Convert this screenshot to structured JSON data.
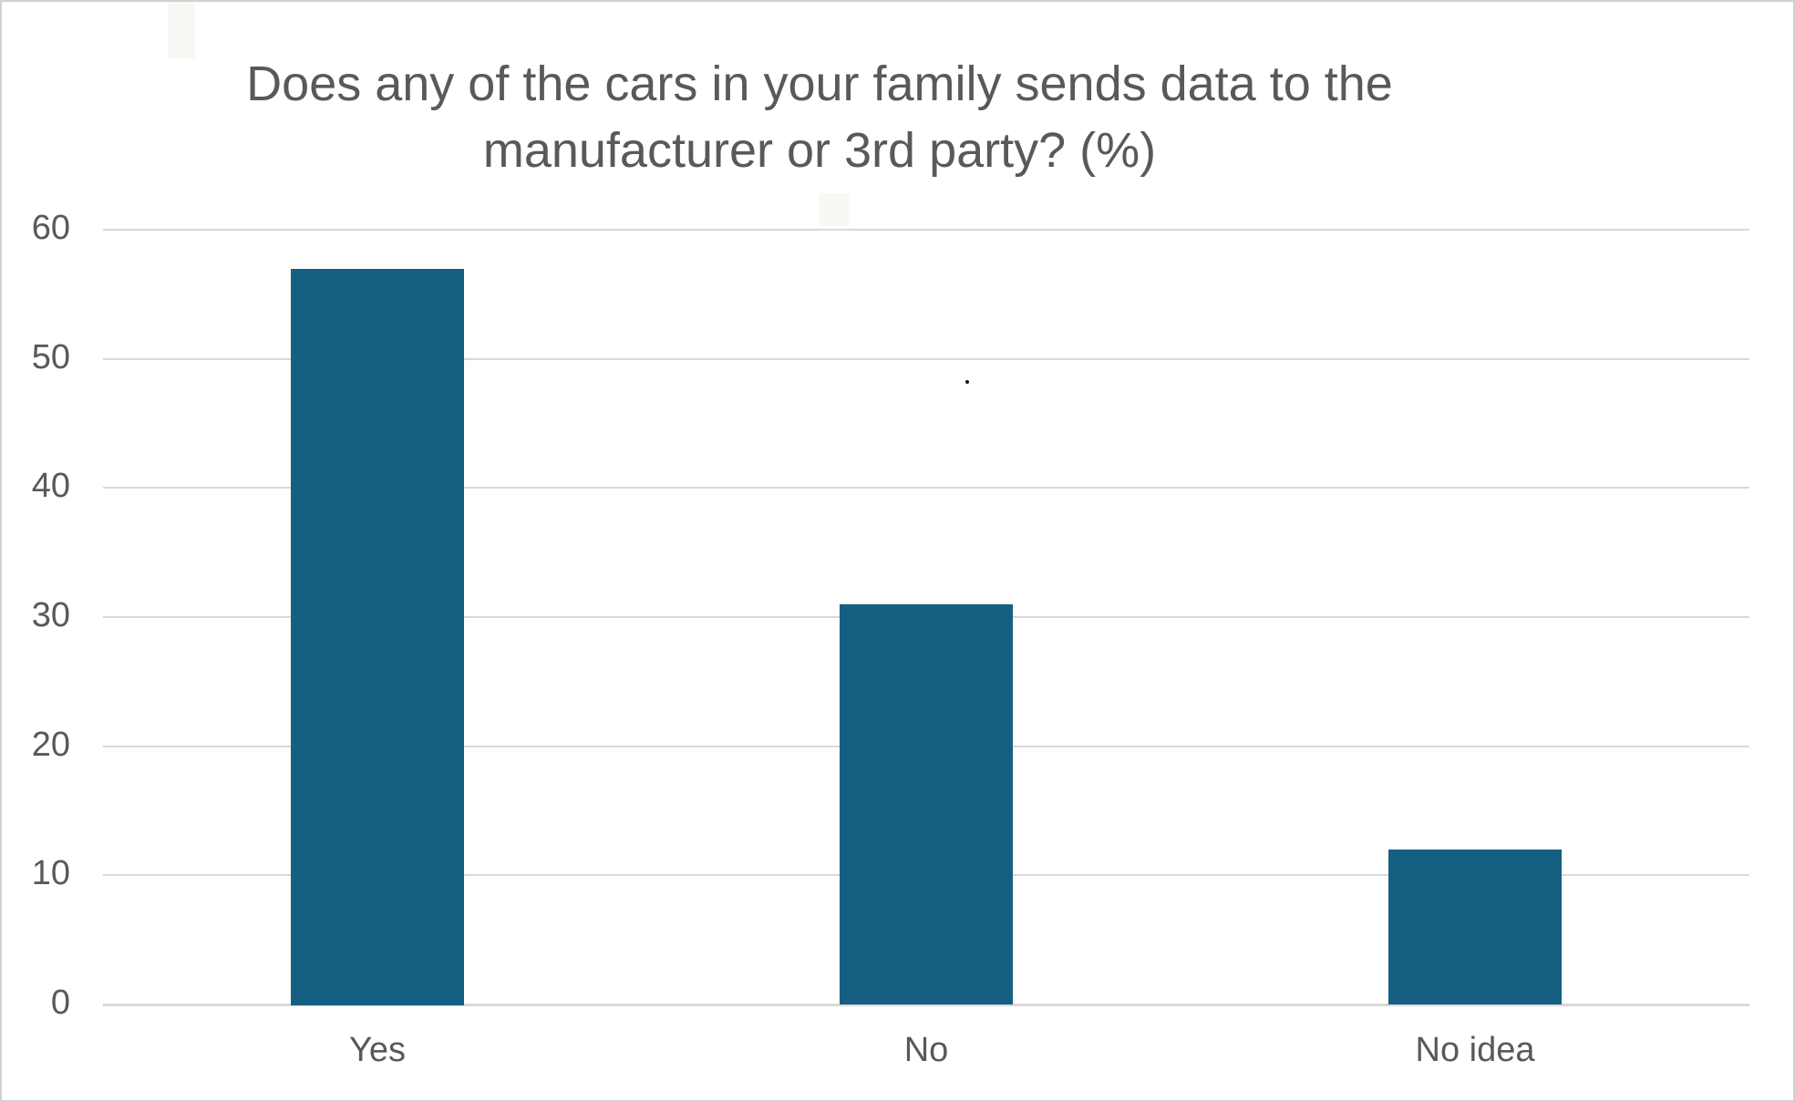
{
  "page": {
    "background": "#ffffff",
    "border_color": "#d0d0d0"
  },
  "chart_data": {
    "type": "bar",
    "title": "Does any of the cars in your family sends data to the manufacturer or 3rd party? (%)",
    "title_lines": [
      "Does any of the cars in your family sends data to the",
      "manufacturer or 3rd party? (%)"
    ],
    "categories": [
      "Yes",
      "No",
      "No idea"
    ],
    "values": [
      57,
      31,
      12
    ],
    "xlabel": "",
    "ylabel": "",
    "ylim": [
      0,
      60
    ],
    "yticks": [
      0,
      10,
      20,
      30,
      40,
      50,
      60
    ],
    "grid": true,
    "legend_position": "none",
    "bar_color": "#156082",
    "grid_color": "#D9D9D9",
    "axis_line_color": "#D9D9D9",
    "text_color": "#595959"
  }
}
